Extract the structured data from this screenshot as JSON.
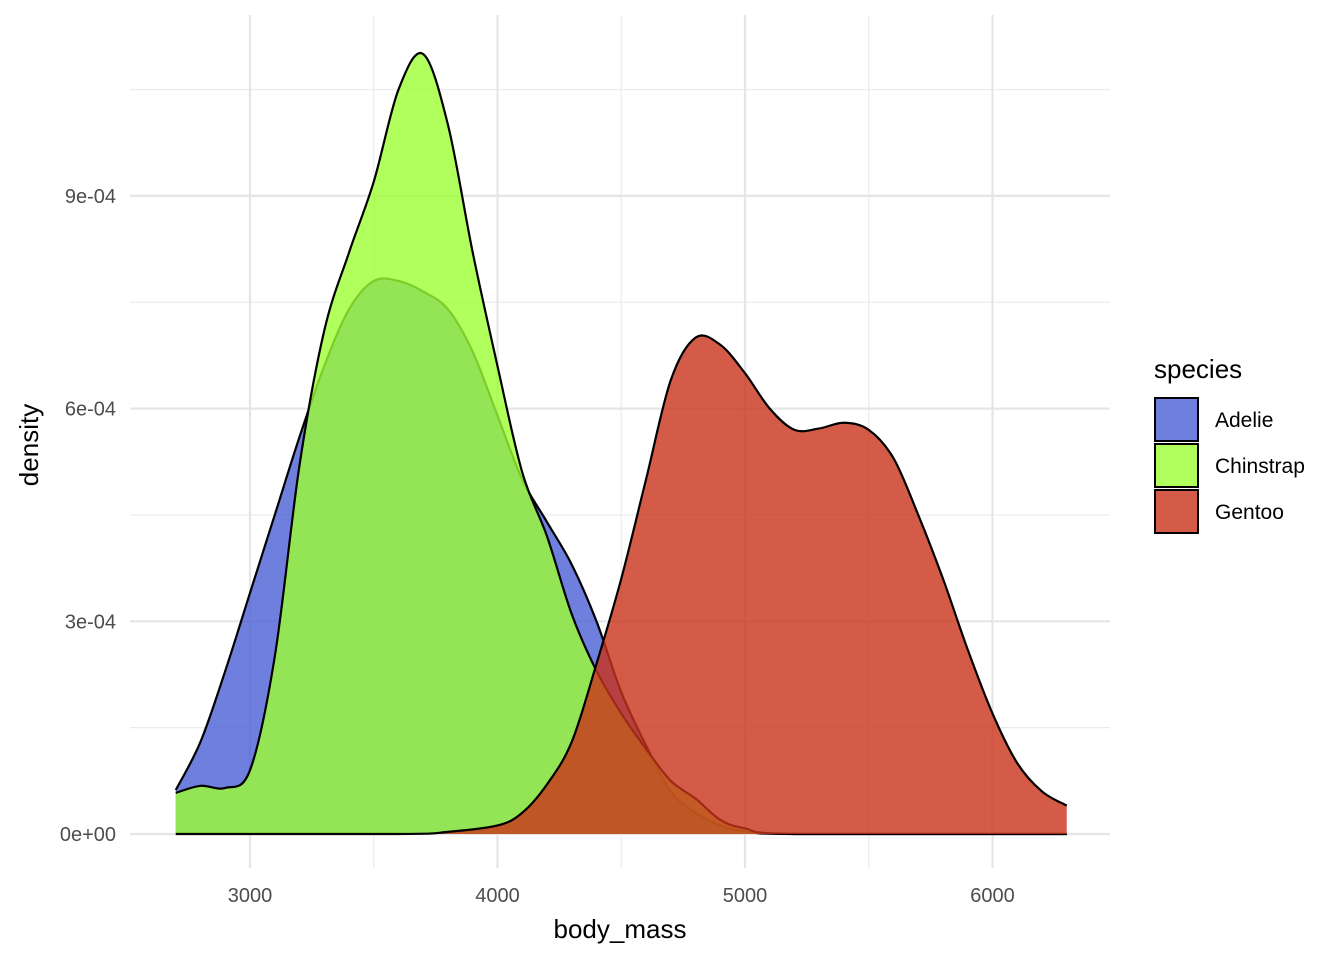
{
  "chart_data": {
    "type": "area",
    "subtype": "density",
    "title": "",
    "xlabel": "body_mass",
    "ylabel": "density",
    "xlim": [
      2700,
      6300
    ],
    "ylim": [
      0,
      0.0011
    ],
    "x_ticks": [
      3000,
      4000,
      5000,
      6000
    ],
    "x_tick_labels": [
      "3000",
      "4000",
      "5000",
      "6000"
    ],
    "y_ticks": [
      0,
      0.0003,
      0.0006,
      0.0009
    ],
    "y_tick_labels": [
      "0e+00",
      "3e-04",
      "6e-04",
      "9e-04"
    ],
    "grid": true,
    "legend": {
      "title": "species",
      "position": "right"
    },
    "series": [
      {
        "name": "Adelie",
        "color": "#4a5fd6",
        "points": [
          [
            2700,
            6.2e-05
          ],
          [
            2800,
            0.00013
          ],
          [
            2900,
            0.00023
          ],
          [
            3000,
            0.00034
          ],
          [
            3100,
            0.00045
          ],
          [
            3200,
            0.00056
          ],
          [
            3300,
            0.00066
          ],
          [
            3400,
            0.00074
          ],
          [
            3500,
            0.00078
          ],
          [
            3600,
            0.00078
          ],
          [
            3700,
            0.000765
          ],
          [
            3800,
            0.00074
          ],
          [
            3900,
            0.00068
          ],
          [
            4000,
            0.00059
          ],
          [
            4100,
            0.0005
          ],
          [
            4200,
            0.00044
          ],
          [
            4300,
            0.00038
          ],
          [
            4400,
            0.0003
          ],
          [
            4500,
            0.0002
          ],
          [
            4600,
            0.000125
          ],
          [
            4700,
            6e-05
          ],
          [
            4800,
            3e-05
          ],
          [
            4900,
            1.2e-05
          ],
          [
            5000,
            4e-06
          ],
          [
            5200,
            0.0
          ],
          [
            6300,
            0.0
          ]
        ]
      },
      {
        "name": "Chinstrap",
        "color": "#9cff33",
        "points": [
          [
            2700,
            5.8e-05
          ],
          [
            2800,
            6.8e-05
          ],
          [
            2900,
            6.5e-05
          ],
          [
            3000,
            9e-05
          ],
          [
            3100,
            0.00025
          ],
          [
            3200,
            0.00052
          ],
          [
            3300,
            0.00071
          ],
          [
            3400,
            0.00082
          ],
          [
            3500,
            0.00092
          ],
          [
            3600,
            0.00105
          ],
          [
            3700,
            0.0011
          ],
          [
            3800,
            0.001
          ],
          [
            3900,
            0.00082
          ],
          [
            4000,
            0.00066
          ],
          [
            4100,
            0.00051
          ],
          [
            4200,
            0.00042
          ],
          [
            4300,
            0.00031
          ],
          [
            4400,
            0.00023
          ],
          [
            4500,
            0.00017
          ],
          [
            4600,
            0.00012
          ],
          [
            4700,
            7.5e-05
          ],
          [
            4800,
            5e-05
          ],
          [
            4900,
            2e-05
          ],
          [
            5000,
            8e-06
          ],
          [
            5200,
            0.0
          ],
          [
            6300,
            0.0
          ]
        ]
      },
      {
        "name": "Gentoo",
        "color": "#c9321a",
        "points": [
          [
            2700,
            0.0
          ],
          [
            3600,
            0.0
          ],
          [
            3800,
            3e-06
          ],
          [
            4000,
            1.2e-05
          ],
          [
            4100,
            3e-05
          ],
          [
            4200,
            7e-05
          ],
          [
            4300,
            0.00013
          ],
          [
            4400,
            0.00024
          ],
          [
            4500,
            0.00036
          ],
          [
            4600,
            0.0005
          ],
          [
            4700,
            0.00064
          ],
          [
            4800,
            0.0007
          ],
          [
            4900,
            0.00069
          ],
          [
            5000,
            0.00065
          ],
          [
            5100,
            0.0006
          ],
          [
            5200,
            0.00057
          ],
          [
            5300,
            0.000572
          ],
          [
            5400,
            0.00058
          ],
          [
            5500,
            0.00057
          ],
          [
            5600,
            0.00053
          ],
          [
            5700,
            0.00045
          ],
          [
            5800,
            0.00036
          ],
          [
            5900,
            0.00026
          ],
          [
            6000,
            0.00017
          ],
          [
            6100,
            0.0001
          ],
          [
            6200,
            6e-05
          ],
          [
            6300,
            4e-05
          ]
        ]
      }
    ]
  }
}
